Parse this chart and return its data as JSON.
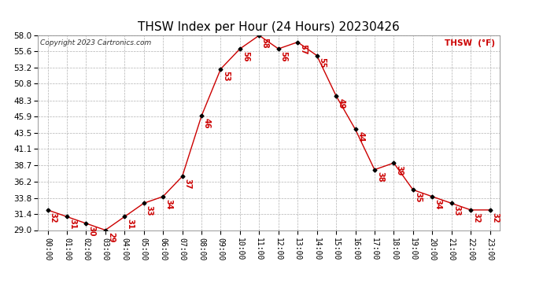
{
  "title": "THSW Index per Hour (24 Hours) 20230426",
  "copyright": "Copyright 2023 Cartronics.com",
  "legend_label": "THSW  (°F)",
  "hours": [
    "00:00",
    "01:00",
    "02:00",
    "03:00",
    "04:00",
    "05:00",
    "06:00",
    "07:00",
    "08:00",
    "09:00",
    "10:00",
    "11:00",
    "12:00",
    "13:00",
    "14:00",
    "15:00",
    "16:00",
    "17:00",
    "18:00",
    "19:00",
    "20:00",
    "21:00",
    "22:00",
    "23:00"
  ],
  "values": [
    32,
    31,
    30,
    29,
    31,
    33,
    34,
    37,
    46,
    53,
    56,
    58,
    56,
    57,
    55,
    49,
    44,
    38,
    39,
    35,
    34,
    33,
    32,
    32
  ],
  "ylim": [
    29.0,
    58.0
  ],
  "yticks": [
    29.0,
    31.4,
    33.8,
    36.2,
    38.7,
    41.1,
    43.5,
    45.9,
    48.3,
    50.8,
    53.2,
    55.6,
    58.0
  ],
  "line_color": "#cc0000",
  "marker_color": "#000000",
  "grid_color": "#aaaaaa",
  "bg_color": "#ffffff",
  "title_fontsize": 11,
  "annotation_fontsize": 7,
  "tick_fontsize": 7,
  "ytick_fontsize": 7.5
}
